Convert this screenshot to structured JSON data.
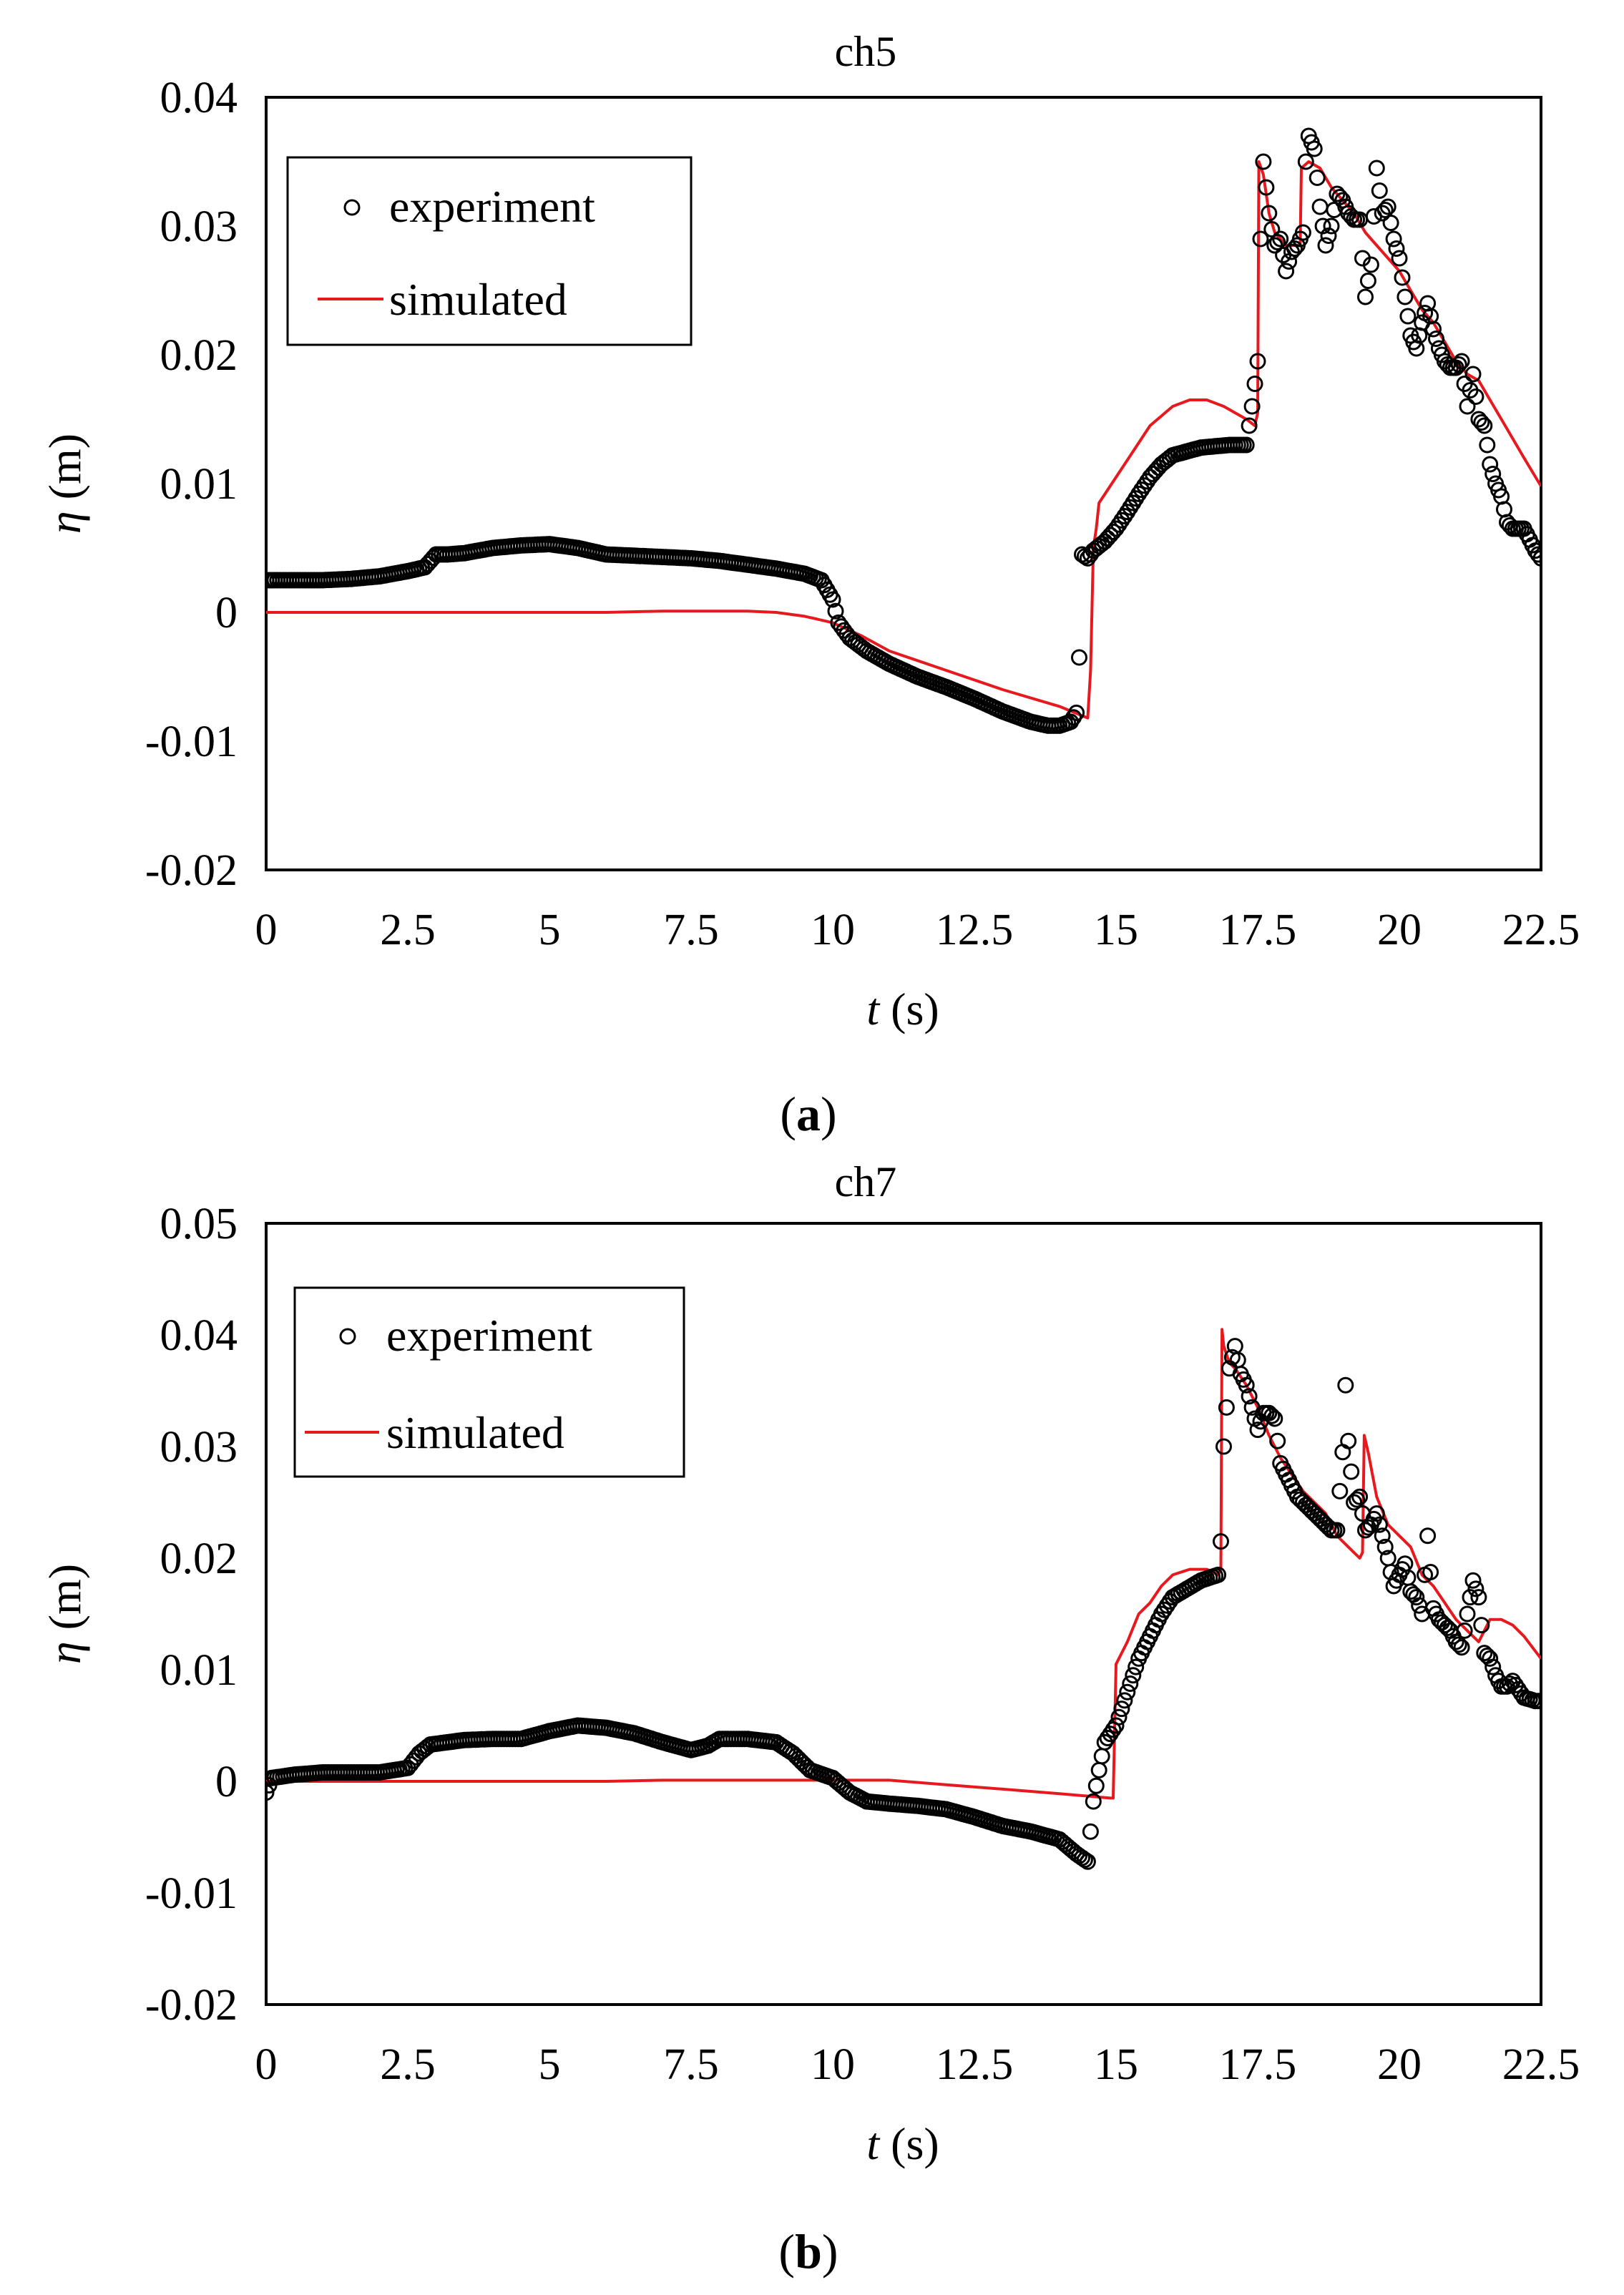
{
  "chart_data": [
    {
      "type": "line",
      "panel_label": "a",
      "title": "ch5",
      "xlabel_var": "t",
      "xlabel_unit": " (s)",
      "ylabel_var": "η",
      "ylabel_unit": " (m)",
      "xlim": [
        0,
        22.5
      ],
      "ylim": [
        -0.02,
        0.04
      ],
      "x_ticks": [
        0,
        2.5,
        5,
        7.5,
        10,
        12.5,
        15,
        17.5,
        20,
        22.5
      ],
      "x_tick_labels": [
        "0",
        "2.5",
        "5",
        "7.5",
        "10",
        "12.5",
        "15",
        "17.5",
        "20",
        "22.5"
      ],
      "y_ticks": [
        0.04,
        0.03,
        0.02,
        0.01,
        0,
        -0.01,
        -0.02
      ],
      "y_tick_labels": [
        "0.04",
        "0.03",
        "0.02",
        "0.01",
        "0",
        "-0.01",
        "-0.02"
      ],
      "legend": {
        "position": "top-left",
        "entries": [
          "experiment",
          "simulated"
        ]
      },
      "series": [
        {
          "name": "experiment",
          "style": "open-circle",
          "color": "#000000",
          "x": [
            0,
            0.5,
            1,
            1.5,
            2,
            2.5,
            2.8,
            3.0,
            3.2,
            3.5,
            4,
            4.5,
            5,
            5.5,
            6,
            6.5,
            7,
            7.5,
            8,
            8.5,
            9,
            9.5,
            9.8,
            10.0,
            10.1,
            10.3,
            10.6,
            11,
            11.5,
            12,
            12.5,
            13,
            13.5,
            13.8,
            14.0,
            14.2,
            14.3,
            14.35,
            14.4,
            14.5,
            14.6,
            14.8,
            15.0,
            15.2,
            15.4,
            15.6,
            15.8,
            16.0,
            16.5,
            17.0,
            17.3,
            17.4,
            17.5,
            17.55,
            17.6,
            17.7,
            17.8,
            17.9,
            18.0,
            18.1,
            18.2,
            18.3,
            18.35,
            18.4,
            18.5,
            18.6,
            18.7,
            18.8,
            18.9,
            19.0,
            19.1,
            19.2,
            19.3,
            19.4,
            19.5,
            19.6,
            19.7,
            19.8,
            19.9,
            20.0,
            20.1,
            20.2,
            20.3,
            20.4,
            20.5,
            20.6,
            20.7,
            20.8,
            20.9,
            21.0,
            21.1,
            21.2,
            21.3,
            21.4,
            21.5,
            21.6,
            21.7,
            21.8,
            21.9,
            22.0,
            22.2,
            22.4,
            22.5
          ],
          "y": [
            0.0025,
            0.0025,
            0.0025,
            0.0026,
            0.0028,
            0.0032,
            0.0035,
            0.0045,
            0.0045,
            0.0046,
            0.005,
            0.0052,
            0.0053,
            0.005,
            0.0045,
            0.0044,
            0.0043,
            0.0042,
            0.004,
            0.0037,
            0.0034,
            0.003,
            0.0025,
            0.001,
            -0.0008,
            -0.002,
            -0.003,
            -0.004,
            -0.005,
            -0.0058,
            -0.0067,
            -0.0077,
            -0.0085,
            -0.0088,
            -0.0088,
            -0.0085,
            -0.0078,
            -0.0035,
            0.0045,
            0.0042,
            0.0048,
            0.0055,
            0.0065,
            0.0078,
            0.0092,
            0.0105,
            0.0115,
            0.0122,
            0.0128,
            0.013,
            0.013,
            0.016,
            0.0195,
            0.029,
            0.035,
            0.031,
            0.0285,
            0.029,
            0.0265,
            0.028,
            0.0285,
            0.0295,
            0.035,
            0.037,
            0.036,
            0.0315,
            0.0285,
            0.03,
            0.0325,
            0.032,
            0.031,
            0.0305,
            0.0305,
            0.0245,
            0.027,
            0.0345,
            0.031,
            0.0315,
            0.029,
            0.0275,
            0.0245,
            0.0215,
            0.0205,
            0.0225,
            0.024,
            0.022,
            0.0205,
            0.0195,
            0.019,
            0.019,
            0.0195,
            0.016,
            0.0185,
            0.015,
            0.0145,
            0.0115,
            0.01,
            0.009,
            0.007,
            0.0065,
            0.0065,
            0.0048,
            0.0042
          ]
        },
        {
          "name": "simulated",
          "style": "line",
          "color": "#e8191e",
          "x": [
            0,
            2,
            4,
            6,
            7,
            8,
            8.5,
            9,
            9.5,
            10,
            10.5,
            11,
            12,
            13,
            14,
            14.5,
            14.55,
            14.6,
            14.65,
            14.7,
            15.0,
            15.3,
            15.6,
            16.0,
            16.3,
            16.6,
            16.9,
            17.1,
            17.3,
            17.45,
            17.5,
            17.52,
            17.6,
            17.7,
            17.8,
            18.0,
            18.2,
            18.25,
            18.27,
            18.4,
            18.6,
            18.8,
            19.0,
            19.2,
            19.4,
            19.6,
            19.8,
            20.0,
            20.2,
            20.4,
            20.6,
            20.8,
            21.0,
            21.2,
            21.4,
            21.6,
            21.8,
            22.0,
            22.2,
            22.5
          ],
          "y": [
            0,
            0,
            0,
            0,
            0.0001,
            0.0001,
            0.0001,
            0,
            -0.0003,
            -0.0008,
            -0.0018,
            -0.003,
            -0.0045,
            -0.006,
            -0.0073,
            -0.0082,
            -0.0045,
            0.005,
            0.0065,
            0.0085,
            0.0105,
            0.0125,
            0.0145,
            0.016,
            0.0165,
            0.0165,
            0.016,
            0.0155,
            0.015,
            0.0145,
            0.0155,
            0.035,
            0.034,
            0.031,
            0.0295,
            0.0285,
            0.0285,
            0.0285,
            0.0345,
            0.035,
            0.0345,
            0.033,
            0.032,
            0.031,
            0.0295,
            0.0285,
            0.0275,
            0.0265,
            0.025,
            0.0235,
            0.0225,
            0.021,
            0.0195,
            0.0185,
            0.018,
            0.0165,
            0.015,
            0.0135,
            0.012,
            0.0098
          ]
        }
      ]
    },
    {
      "type": "line",
      "panel_label": "b",
      "title": "ch7",
      "xlabel_var": "t",
      "xlabel_unit": " (s)",
      "ylabel_var": "η",
      "ylabel_unit": " (m)",
      "xlim": [
        0,
        22.5
      ],
      "ylim": [
        -0.02,
        0.05
      ],
      "x_ticks": [
        0,
        2.5,
        5,
        7.5,
        10,
        12.5,
        15,
        17.5,
        20,
        22.5
      ],
      "x_tick_labels": [
        "0",
        "2.5",
        "5",
        "7.5",
        "10",
        "12.5",
        "15",
        "17.5",
        "20",
        "22.5"
      ],
      "y_ticks": [
        0.05,
        0.04,
        0.03,
        0.02,
        0.01,
        0,
        -0.01,
        -0.02
      ],
      "y_tick_labels": [
        "0.05",
        "0.04",
        "0.03",
        "0.02",
        "0.01",
        "0",
        "-0.01",
        "-0.02"
      ],
      "legend": {
        "position": "top-left",
        "entries": [
          "experiment",
          "simulated"
        ]
      },
      "series": [
        {
          "name": "experiment",
          "style": "open-circle",
          "color": "#000000",
          "x": [
            0,
            0.1,
            0.5,
            1,
            1.5,
            2,
            2.5,
            2.7,
            2.9,
            3.2,
            3.5,
            4,
            4.5,
            5,
            5.5,
            6,
            6.5,
            7,
            7.5,
            7.8,
            8,
            8.5,
            9,
            9.3,
            9.6,
            10,
            10.3,
            10.6,
            11,
            11.5,
            12,
            12.5,
            13,
            13.5,
            14,
            14.3,
            14.5,
            14.6,
            14.7,
            14.8,
            15.0,
            15.2,
            15.4,
            15.6,
            15.8,
            16.0,
            16.5,
            16.8,
            16.85,
            16.9,
            17.0,
            17.1,
            17.2,
            17.3,
            17.4,
            17.5,
            17.6,
            17.7,
            17.8,
            17.9,
            18.0,
            18.2,
            18.4,
            18.6,
            18.8,
            18.9,
            19.0,
            19.05,
            19.1,
            19.2,
            19.3,
            19.4,
            19.5,
            19.6,
            19.7,
            19.8,
            19.9,
            20.0,
            20.1,
            20.2,
            20.3,
            20.4,
            20.5,
            20.6,
            20.7,
            20.8,
            20.9,
            21.0,
            21.1,
            21.2,
            21.3,
            21.4,
            21.5,
            21.6,
            21.7,
            21.8,
            21.9,
            22.0,
            22.2,
            22.4,
            22.5
          ],
          "y": [
            -0.001,
            0.0003,
            0.0006,
            0.0008,
            0.0008,
            0.0008,
            0.0012,
            0.0025,
            0.0033,
            0.0035,
            0.0037,
            0.0038,
            0.0038,
            0.0045,
            0.005,
            0.0048,
            0.0043,
            0.0035,
            0.0028,
            0.0032,
            0.0038,
            0.0038,
            0.0035,
            0.0025,
            0.001,
            0.0003,
            -0.001,
            -0.0018,
            -0.002,
            -0.0022,
            -0.0025,
            -0.0032,
            -0.004,
            -0.0045,
            -0.0052,
            -0.0065,
            -0.0072,
            -0.0018,
            0.001,
            0.0035,
            0.005,
            0.008,
            0.011,
            0.013,
            0.015,
            0.0165,
            0.018,
            0.0185,
            0.0215,
            0.03,
            0.037,
            0.039,
            0.0365,
            0.0355,
            0.0335,
            0.0315,
            0.033,
            0.033,
            0.0325,
            0.0285,
            0.0275,
            0.0255,
            0.0245,
            0.0235,
            0.0225,
            0.0225,
            0.0295,
            0.0355,
            0.0305,
            0.025,
            0.0255,
            0.0225,
            0.023,
            0.024,
            0.022,
            0.02,
            0.0175,
            0.0185,
            0.0195,
            0.017,
            0.0165,
            0.015,
            0.022,
            0.0155,
            0.0145,
            0.014,
            0.0135,
            0.0125,
            0.012,
            0.015,
            0.018,
            0.0165,
            0.0115,
            0.011,
            0.0095,
            0.0085,
            0.0085,
            0.009,
            0.0075,
            0.0072,
            0.0072
          ]
        },
        {
          "name": "simulated",
          "style": "line",
          "color": "#e8191e",
          "x": [
            0,
            2,
            4,
            6,
            7,
            8,
            9,
            10,
            11,
            12,
            13,
            14,
            14.9,
            14.95,
            15.0,
            15.2,
            15.4,
            15.6,
            15.8,
            16.0,
            16.3,
            16.6,
            16.8,
            16.85,
            16.87,
            16.9,
            17.0,
            17.1,
            17.3,
            17.5,
            17.7,
            17.9,
            18.1,
            18.3,
            18.5,
            18.7,
            18.9,
            19.1,
            19.3,
            19.35,
            19.38,
            19.45,
            19.6,
            19.8,
            20.0,
            20.2,
            20.4,
            20.6,
            20.8,
            21.0,
            21.2,
            21.4,
            21.6,
            21.8,
            22.0,
            22.2,
            22.5
          ],
          "y": [
            0,
            0,
            0,
            0,
            0.0001,
            0.0001,
            0.0001,
            0.0001,
            0.0001,
            -0.0003,
            -0.0007,
            -0.0011,
            -0.0015,
            -0.0015,
            0.0105,
            0.0125,
            0.015,
            0.016,
            0.0175,
            0.0185,
            0.019,
            0.019,
            0.0185,
            0.019,
            0.0405,
            0.039,
            0.0375,
            0.037,
            0.0355,
            0.0335,
            0.031,
            0.029,
            0.0275,
            0.026,
            0.025,
            0.024,
            0.022,
            0.021,
            0.02,
            0.0205,
            0.031,
            0.0295,
            0.0255,
            0.023,
            0.022,
            0.021,
            0.0185,
            0.0175,
            0.016,
            0.0145,
            0.0135,
            0.0125,
            0.0145,
            0.0145,
            0.014,
            0.013,
            0.011
          ]
        }
      ]
    }
  ]
}
